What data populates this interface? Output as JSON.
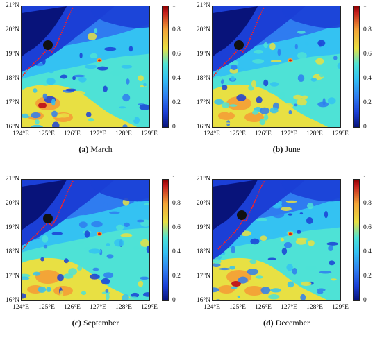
{
  "lat_ticks": [
    "21°N",
    "20°N",
    "19°N",
    "18°N",
    "17°N",
    "16°N"
  ],
  "lon_ticks": [
    "124°E",
    "125°E",
    "126°E",
    "127°E",
    "128°E",
    "129°E"
  ],
  "colorbar_ticks": [
    "1",
    "0.8",
    "0.6",
    "0.4",
    "0.2",
    "0"
  ],
  "colors": {
    "deep_blue": "#08137a",
    "blue": "#1b3fd6",
    "mid_blue": "#2f7cf0",
    "light_blue": "#34c2f2",
    "cyan": "#4ee2d6",
    "yellow": "#e8e043",
    "orange": "#f3a537",
    "red": "#c21c1c",
    "track": "#ff1f1f",
    "marker": "#111111"
  },
  "panels": [
    {
      "letter": "(a)",
      "month": "March",
      "variant": 0
    },
    {
      "letter": "(b)",
      "month": "June",
      "variant": 1
    },
    {
      "letter": "(c)",
      "month": "September",
      "variant": 2
    },
    {
      "letter": "(d)",
      "month": "December",
      "variant": 3
    }
  ]
}
